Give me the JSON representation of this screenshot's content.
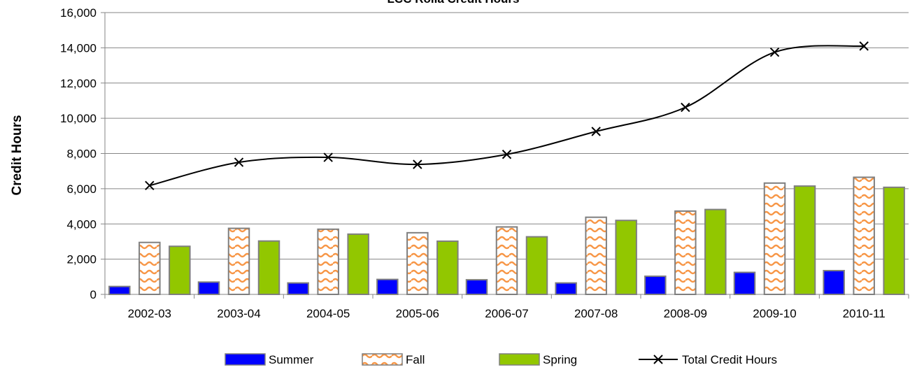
{
  "chart_data": {
    "type": "bar",
    "title": "LCC Rolla Credit Hours",
    "xlabel": "",
    "ylabel": "Credit Hours",
    "ylim": [
      0,
      16000
    ],
    "yticks": [
      "0",
      "2,000",
      "4,000",
      "6,000",
      "8,000",
      "10,000",
      "12,000",
      "14,000",
      "16,000"
    ],
    "ytick_values": [
      0,
      2000,
      4000,
      6000,
      8000,
      10000,
      12000,
      14000,
      16000
    ],
    "grid": true,
    "legend_position": "bottom",
    "categories": [
      "2002-03",
      "2003-04",
      "2004-05",
      "2005-06",
      "2006-07",
      "2007-08",
      "2008-09",
      "2009-10",
      "2010-11"
    ],
    "series": [
      {
        "name": "Summer",
        "kind": "bar",
        "color": "#0000ff",
        "values": [
          450,
          700,
          650,
          850,
          830,
          650,
          1030,
          1250,
          1350
        ]
      },
      {
        "name": "Fall",
        "kind": "bar",
        "color": "#f79646",
        "pattern": "wave",
        "values": [
          2950,
          3750,
          3700,
          3500,
          3830,
          4380,
          4730,
          6320,
          6650
        ]
      },
      {
        "name": "Spring",
        "kind": "bar",
        "color": "#92c700",
        "values": [
          2730,
          3030,
          3420,
          3020,
          3270,
          4200,
          4820,
          6150,
          6080
        ]
      },
      {
        "name": "Total Credit Hours",
        "kind": "line",
        "color": "#000000",
        "marker": "x",
        "values": [
          6180,
          7500,
          7780,
          7380,
          7950,
          9250,
          10620,
          13750,
          14100
        ]
      }
    ]
  }
}
